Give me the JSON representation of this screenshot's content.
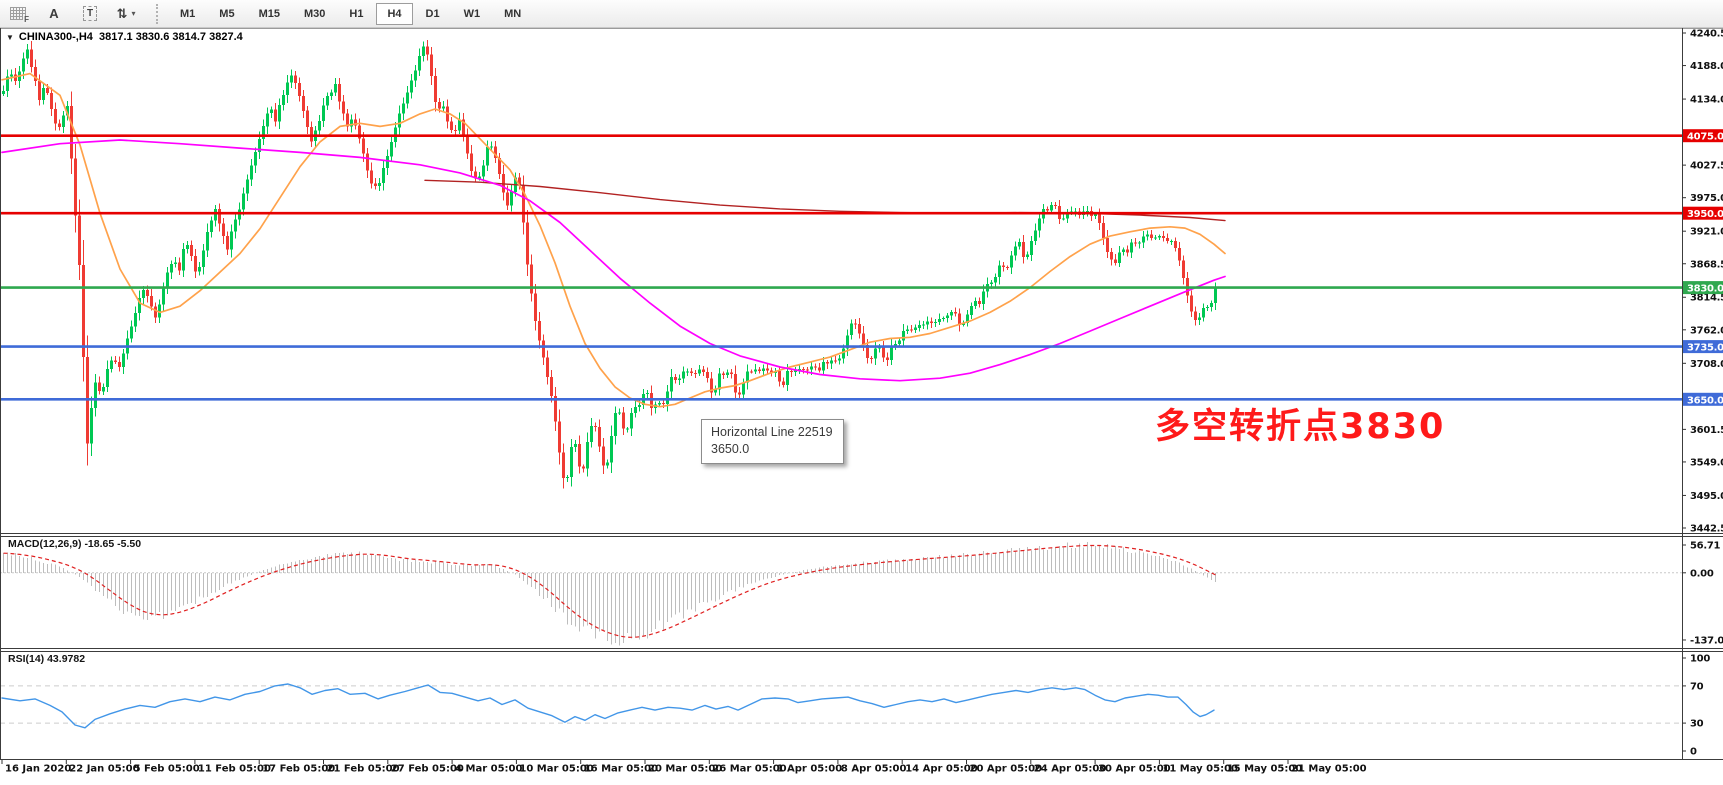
{
  "toolbar": {
    "icons": [
      {
        "name": "chart-grid-icon",
        "glyph": "F"
      },
      {
        "name": "text-label-icon",
        "glyph": "A"
      },
      {
        "name": "text-box-icon",
        "glyph": "T"
      },
      {
        "name": "arrange-icon",
        "glyph": "⇅"
      },
      {
        "name": "dropdown-caret-icon",
        "glyph": "▾"
      }
    ],
    "timeframes": [
      "M1",
      "M5",
      "M15",
      "M30",
      "H1",
      "H4",
      "D1",
      "W1",
      "MN"
    ],
    "active_timeframe": "H4"
  },
  "main_chart": {
    "symbol_line": "CHINA300-,H4  3817.1 3830.6 3814.7 3827.4",
    "annotation": "多空转折点3830",
    "annotation_color": "#ff1a1a",
    "axis_ticks": [
      4240.5,
      4188.0,
      4134.0,
      4027.5,
      3975.0,
      3921.0,
      3868.5,
      3814.5,
      3762.0,
      3708.0,
      3601.5,
      3549.0,
      3495.0,
      3442.5
    ],
    "hlines": [
      {
        "value": 4075.0,
        "label": "4075.0",
        "color": "#e60000"
      },
      {
        "value": 3950.0,
        "label": "3950.0",
        "color": "#e60000"
      },
      {
        "value": 3830.0,
        "label": "3830.0",
        "color": "#2fa84f"
      },
      {
        "value": 3735.0,
        "label": "3735.0",
        "color": "#3f6bd8"
      },
      {
        "value": 3650.0,
        "label": "3650.0",
        "color": "#3f6bd8"
      }
    ],
    "colors": {
      "bull": "#00c853",
      "bear": "#ef3b33",
      "ma_fast": "#ffa24b",
      "ma_slow": "#ff00ff",
      "ma_long": "#b22222",
      "rsi_line": "#4296e8",
      "macd_bar": "#bdbdbd",
      "macd_signal": "#e02020"
    }
  },
  "tooltip": {
    "line1": "Horizontal Line 22519",
    "line2": "3650.0"
  },
  "macd": {
    "label": "MACD(12,26,9) -18.65 -5.50",
    "tick_values": [
      56.71,
      0,
      -137.01
    ]
  },
  "rsi": {
    "label": "RSI(14) 43.9782",
    "axis_ticks": [
      100,
      70,
      30,
      0
    ],
    "levels": [
      70,
      30
    ]
  },
  "time_axis": {
    "labels": [
      "16 Jan 2020",
      "22 Jan 05:00",
      "5 Feb 05:00",
      "11 Feb 05:00",
      "17 Feb 05:00",
      "21 Feb 05:00",
      "27 Feb 05:00",
      "4 Mar 05:00",
      "10 Mar 05:00",
      "16 Mar 05:00",
      "20 Mar 05:00",
      "26 Mar 05:00",
      "1 Apr 05:00",
      "8 Apr 05:00",
      "14 Apr 05:00",
      "20 Apr 05:00",
      "24 Apr 05:00",
      "30 Apr 05:00",
      "11 May 05:00",
      "15 May 05:00",
      "21 May 05:00"
    ]
  },
  "chart_data": {
    "type": "candlestick",
    "title": "CHINA300- H4",
    "price_axis_range": [
      3431,
      4248
    ],
    "price": {
      "x": [
        2,
        8,
        14,
        20,
        26,
        32,
        38,
        44,
        50,
        56,
        62,
        66,
        70,
        74,
        78,
        82,
        86,
        90,
        94,
        100,
        106,
        112,
        118,
        124,
        130,
        136,
        142,
        148,
        154,
        160,
        166,
        172,
        178,
        184,
        190,
        196,
        202,
        208,
        214,
        220,
        226,
        232,
        238,
        244,
        250,
        256,
        262,
        268,
        274,
        280,
        286,
        292,
        298,
        304,
        310,
        316,
        322,
        328,
        334,
        340,
        346,
        352,
        358,
        364,
        370,
        376,
        382,
        388,
        394,
        400,
        406,
        412,
        418,
        424,
        428,
        432,
        436,
        440,
        446,
        452,
        458,
        464,
        470,
        476,
        482,
        488,
        494,
        500,
        506,
        512,
        516,
        520,
        524,
        528,
        532,
        536,
        540,
        544,
        548,
        552,
        556,
        560,
        564,
        568,
        572,
        576,
        580,
        584,
        588,
        592,
        596,
        600,
        604,
        608,
        612,
        616,
        620,
        624,
        628,
        632,
        636,
        640,
        644,
        648,
        652,
        656,
        660,
        664,
        668,
        672,
        676,
        680,
        684,
        688,
        692,
        696,
        700,
        704,
        708,
        712,
        716,
        720,
        724,
        728,
        732,
        736,
        740,
        744,
        748,
        752,
        756,
        760,
        764,
        768,
        772,
        776,
        780,
        784,
        788,
        792,
        796,
        800,
        804,
        808,
        812,
        816,
        820,
        824,
        828,
        832,
        836,
        840,
        844,
        848,
        852,
        856,
        860,
        864,
        868,
        872,
        876,
        880,
        884,
        888,
        892,
        896,
        900,
        904,
        908,
        912,
        916,
        920,
        924,
        928,
        932,
        936,
        940,
        944,
        948,
        952,
        956,
        960,
        964,
        968,
        972,
        976,
        980,
        984,
        988,
        992,
        996,
        1000,
        1004,
        1008,
        1012,
        1016,
        1020,
        1024,
        1028,
        1032,
        1036,
        1040,
        1044,
        1048,
        1052,
        1056,
        1060,
        1064,
        1068,
        1072,
        1076,
        1080,
        1084,
        1088,
        1092,
        1096,
        1100,
        1104,
        1108,
        1112,
        1116,
        1120,
        1124,
        1128,
        1132,
        1136,
        1140,
        1144,
        1148,
        1152,
        1156,
        1160,
        1164,
        1168,
        1172,
        1176,
        1180,
        1184,
        1188,
        1192,
        1196,
        1200,
        1204,
        1208,
        1212,
        1214
      ],
      "close": [
        4150,
        4175,
        4160,
        4190,
        4215,
        4175,
        4135,
        4155,
        4120,
        4085,
        4105,
        4120,
        4040,
        3950,
        3870,
        3720,
        3580,
        3640,
        3680,
        3660,
        3700,
        3720,
        3700,
        3740,
        3770,
        3800,
        3830,
        3810,
        3780,
        3820,
        3855,
        3880,
        3860,
        3905,
        3880,
        3850,
        3890,
        3930,
        3955,
        3920,
        3890,
        3930,
        3960,
        3990,
        4030,
        4060,
        4090,
        4120,
        4100,
        4135,
        4160,
        4175,
        4140,
        4100,
        4065,
        4090,
        4120,
        4145,
        4155,
        4120,
        4090,
        4105,
        4070,
        4030,
        4000,
        3990,
        4020,
        4055,
        4090,
        4120,
        4145,
        4175,
        4200,
        4225,
        4190,
        4150,
        4110,
        4130,
        4095,
        4075,
        4100,
        4060,
        4020,
        3995,
        4030,
        4065,
        4040,
        4000,
        3960,
        3995,
        4025,
        3970,
        3900,
        3840,
        3800,
        3760,
        3730,
        3700,
        3670,
        3640,
        3590,
        3545,
        3495,
        3550,
        3600,
        3555,
        3525,
        3560,
        3595,
        3620,
        3590,
        3555,
        3530,
        3570,
        3610,
        3640,
        3615,
        3585,
        3615,
        3645,
        3625,
        3650,
        3670,
        3645,
        3625,
        3650,
        3630,
        3655,
        3675,
        3690,
        3670,
        3690,
        3705,
        3685,
        3700,
        3685,
        3705,
        3690,
        3670,
        3655,
        3680,
        3700,
        3680,
        3705,
        3675,
        3645,
        3665,
        3690,
        3705,
        3690,
        3700,
        3690,
        3705,
        3690,
        3700,
        3685,
        3665,
        3685,
        3700,
        3690,
        3705,
        3695,
        3705,
        3695,
        3708,
        3695,
        3705,
        3715,
        3705,
        3715,
        3705,
        3725,
        3745,
        3765,
        3780,
        3765,
        3745,
        3725,
        3705,
        3720,
        3740,
        3725,
        3705,
        3725,
        3745,
        3735,
        3755,
        3770,
        3755,
        3770,
        3760,
        3775,
        3765,
        3780,
        3770,
        3785,
        3775,
        3790,
        3780,
        3795,
        3780,
        3765,
        3780,
        3795,
        3810,
        3800,
        3815,
        3830,
        3845,
        3835,
        3855,
        3870,
        3855,
        3875,
        3890,
        3910,
        3890,
        3870,
        3895,
        3915,
        3935,
        3950,
        3965,
        3950,
        3970,
        3950,
        3930,
        3945,
        3960,
        3945,
        3955,
        3945,
        3958,
        3942,
        3952,
        3940,
        3925,
        3900,
        3880,
        3865,
        3880,
        3895,
        3880,
        3895,
        3908,
        3895,
        3908,
        3918,
        3905,
        3915,
        3905,
        3915,
        3902,
        3912,
        3900,
        3888,
        3862,
        3832,
        3805,
        3785,
        3775,
        3790,
        3805,
        3795,
        3815,
        3827
      ]
    },
    "ma_fast": {
      "x": [
        2,
        30,
        60,
        80,
        100,
        120,
        140,
        160,
        180,
        200,
        220,
        240,
        260,
        280,
        300,
        320,
        340,
        360,
        380,
        400,
        420,
        435,
        450,
        465,
        480,
        495,
        510,
        525,
        540,
        555,
        570,
        585,
        600,
        615,
        630,
        645,
        660,
        675,
        690,
        705,
        720,
        735,
        750,
        770,
        790,
        810,
        830,
        850,
        870,
        890,
        910,
        930,
        950,
        970,
        990,
        1010,
        1030,
        1050,
        1070,
        1090,
        1110,
        1130,
        1150,
        1170,
        1185,
        1200,
        1214,
        1225
      ],
      "v": [
        4165,
        4175,
        4140,
        4060,
        3950,
        3860,
        3805,
        3790,
        3800,
        3825,
        3855,
        3885,
        3925,
        3975,
        4025,
        4065,
        4090,
        4095,
        4090,
        4095,
        4110,
        4118,
        4110,
        4095,
        4070,
        4045,
        4020,
        3980,
        3930,
        3870,
        3800,
        3740,
        3700,
        3670,
        3652,
        3642,
        3638,
        3642,
        3652,
        3662,
        3668,
        3672,
        3680,
        3692,
        3702,
        3710,
        3718,
        3730,
        3742,
        3748,
        3750,
        3756,
        3766,
        3776,
        3790,
        3808,
        3830,
        3856,
        3880,
        3900,
        3913,
        3920,
        3926,
        3928,
        3926,
        3916,
        3900,
        3885
      ]
    },
    "ma_slow": {
      "x": [
        2,
        60,
        120,
        180,
        240,
        300,
        360,
        420,
        460,
        500,
        530,
        560,
        590,
        620,
        650,
        680,
        710,
        740,
        780,
        820,
        860,
        900,
        940,
        970,
        1000,
        1030,
        1060,
        1090,
        1120,
        1150,
        1180,
        1214,
        1225
      ],
      "v": [
        4048,
        4062,
        4068,
        4062,
        4055,
        4048,
        4040,
        4028,
        4015,
        3995,
        3970,
        3935,
        3890,
        3845,
        3805,
        3768,
        3740,
        3720,
        3702,
        3690,
        3683,
        3680,
        3684,
        3692,
        3706,
        3722,
        3740,
        3760,
        3780,
        3800,
        3820,
        3842,
        3848
      ]
    },
    "ma_long": {
      "x": [
        425,
        480,
        540,
        600,
        660,
        720,
        780,
        840,
        900,
        960,
        1020,
        1080,
        1140,
        1190,
        1225
      ],
      "v": [
        4003,
        4000,
        3993,
        3983,
        3972,
        3963,
        3957,
        3953,
        3951,
        3950,
        3951,
        3950,
        3947,
        3943,
        3938
      ]
    },
    "macd": {
      "x": [
        2,
        30,
        60,
        80,
        100,
        120,
        140,
        160,
        180,
        200,
        220,
        240,
        260,
        280,
        300,
        320,
        340,
        360,
        380,
        400,
        420,
        440,
        455,
        470,
        485,
        500,
        515,
        530,
        545,
        560,
        575,
        590,
        605,
        620,
        635,
        650,
        665,
        680,
        700,
        720,
        740,
        760,
        780,
        800,
        820,
        840,
        860,
        880,
        900,
        920,
        940,
        960,
        980,
        1000,
        1020,
        1040,
        1060,
        1080,
        1100,
        1120,
        1140,
        1160,
        1175,
        1190,
        1200,
        1208,
        1214
      ],
      "v": [
        40,
        30,
        12,
        -10,
        -45,
        -75,
        -92,
        -88,
        -72,
        -52,
        -30,
        -12,
        4,
        16,
        26,
        33,
        38,
        40,
        34,
        26,
        24,
        20,
        16,
        14,
        18,
        10,
        -5,
        -28,
        -55,
        -85,
        -108,
        -124,
        -133,
        -137,
        -130,
        -118,
        -104,
        -88,
        -68,
        -48,
        -30,
        -15,
        -4,
        4,
        11,
        16,
        20,
        24,
        27,
        30,
        33,
        36,
        40,
        44,
        48,
        52,
        55,
        57,
        55,
        50,
        42,
        32,
        22,
        8,
        -4,
        -13,
        -18.65
      ]
    },
    "rsi": {
      "x": [
        2,
        20,
        35,
        50,
        62,
        75,
        85,
        95,
        110,
        125,
        140,
        155,
        170,
        185,
        200,
        215,
        230,
        245,
        260,
        275,
        288,
        300,
        312,
        325,
        338,
        350,
        365,
        378,
        390,
        405,
        418,
        428,
        440,
        452,
        465,
        478,
        490,
        502,
        515,
        528,
        540,
        552,
        565,
        575,
        585,
        595,
        605,
        618,
        630,
        642,
        655,
        668,
        680,
        692,
        705,
        716,
        728,
        738,
        750,
        762,
        775,
        788,
        798,
        810,
        822,
        835,
        848,
        860,
        872,
        884,
        896,
        908,
        920,
        932,
        944,
        956,
        968,
        980,
        992,
        1004,
        1016,
        1028,
        1040,
        1052,
        1064,
        1076,
        1085,
        1095,
        1105,
        1115,
        1125,
        1137,
        1148,
        1158,
        1168,
        1178,
        1186,
        1193,
        1200,
        1206,
        1211,
        1214
      ],
      "v": [
        57,
        54,
        56,
        49,
        42,
        28,
        25,
        34,
        40,
        45,
        49,
        47,
        53,
        56,
        53,
        58,
        55,
        61,
        64,
        70,
        72,
        68,
        61,
        65,
        67,
        61,
        62,
        56,
        60,
        64,
        68,
        71,
        63,
        62,
        58,
        54,
        57,
        50,
        55,
        46,
        42,
        38,
        31,
        37,
        33,
        39,
        35,
        41,
        44,
        47,
        44,
        47,
        46,
        44,
        49,
        45,
        48,
        44,
        50,
        56,
        57,
        56,
        52,
        54,
        56,
        57,
        58,
        54,
        51,
        47,
        50,
        53,
        55,
        53,
        56,
        52,
        55,
        58,
        61,
        63,
        65,
        63,
        66,
        68,
        66,
        68,
        66,
        60,
        55,
        53,
        57,
        59,
        61,
        60,
        58,
        58,
        50,
        42,
        37,
        39,
        42,
        44
      ]
    }
  }
}
